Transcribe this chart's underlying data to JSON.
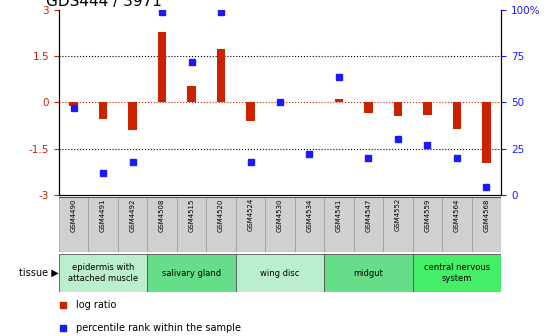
{
  "title": "GDS444 / 3971",
  "samples": [
    "GSM4490",
    "GSM4491",
    "GSM4492",
    "GSM4508",
    "GSM4515",
    "GSM4520",
    "GSM4524",
    "GSM4530",
    "GSM4534",
    "GSM4541",
    "GSM4547",
    "GSM4552",
    "GSM4559",
    "GSM4564",
    "GSM4568"
  ],
  "log_ratio": [
    -0.12,
    -0.55,
    -0.9,
    2.3,
    0.55,
    1.75,
    -0.6,
    0.0,
    0.0,
    0.1,
    -0.35,
    -0.45,
    -0.42,
    -0.85,
    -1.95
  ],
  "percentile": [
    47,
    12,
    18,
    99,
    72,
    99,
    18,
    50,
    22,
    64,
    20,
    30,
    27,
    20,
    4
  ],
  "ylim": [
    -3,
    3
  ],
  "yticks_left": [
    -3,
    -1.5,
    0,
    1.5,
    3
  ],
  "yticks_right": [
    0,
    25,
    50,
    75,
    100
  ],
  "bar_color": "#cc2200",
  "dot_color": "#1a1aff",
  "zero_line_color": "#cc2200",
  "hline_color": "#000000",
  "tissue_groups": [
    {
      "label": "epidermis with\nattached muscle",
      "start": 0,
      "end": 2,
      "color": "#bbeecc"
    },
    {
      "label": "salivary gland",
      "start": 3,
      "end": 5,
      "color": "#66dd88"
    },
    {
      "label": "wing disc",
      "start": 6,
      "end": 8,
      "color": "#bbeecc"
    },
    {
      "label": "midgut",
      "start": 9,
      "end": 11,
      "color": "#66dd88"
    },
    {
      "label": "central nervous\nsystem",
      "start": 12,
      "end": 14,
      "color": "#44ee66"
    }
  ],
  "legend_items": [
    {
      "label": "log ratio",
      "color": "#cc2200"
    },
    {
      "label": "percentile rank within the sample",
      "color": "#1a1aff"
    }
  ],
  "background_color": "#ffffff",
  "sample_box_color": "#d0d0d0",
  "sample_box_edge": "#999999",
  "tick_color_left": "#cc2200",
  "tick_color_right": "#1a1aff",
  "title_fontsize": 11,
  "tick_fontsize": 7.5,
  "sample_fontsize": 5,
  "tissue_fontsize": 6,
  "legend_fontsize": 7,
  "bar_width": 0.3
}
